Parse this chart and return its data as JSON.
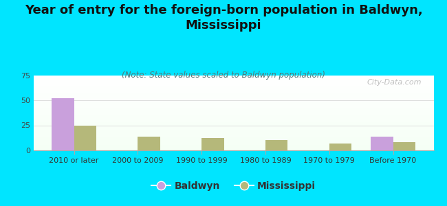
{
  "title": "Year of entry for the foreign-born population in Baldwyn,\nMississippi",
  "subtitle": "(Note: State values scaled to Baldwyn population)",
  "categories": [
    "2010 or later",
    "2000 to 2009",
    "1990 to 1999",
    "1980 to 1989",
    "1970 to 1979",
    "Before 1970"
  ],
  "baldwyn_values": [
    52,
    0,
    0,
    0,
    0,
    14
  ],
  "mississippi_values": [
    25,
    14,
    12,
    10,
    7,
    8
  ],
  "baldwyn_color": "#c9a0dc",
  "mississippi_color": "#b5b87a",
  "background_color": "#00e5ff",
  "ylim": [
    0,
    75
  ],
  "yticks": [
    0,
    25,
    50,
    75
  ],
  "watermark": "City-Data.com",
  "bar_width": 0.35,
  "title_fontsize": 13,
  "subtitle_fontsize": 8.5,
  "tick_fontsize": 8,
  "legend_fontsize": 10
}
